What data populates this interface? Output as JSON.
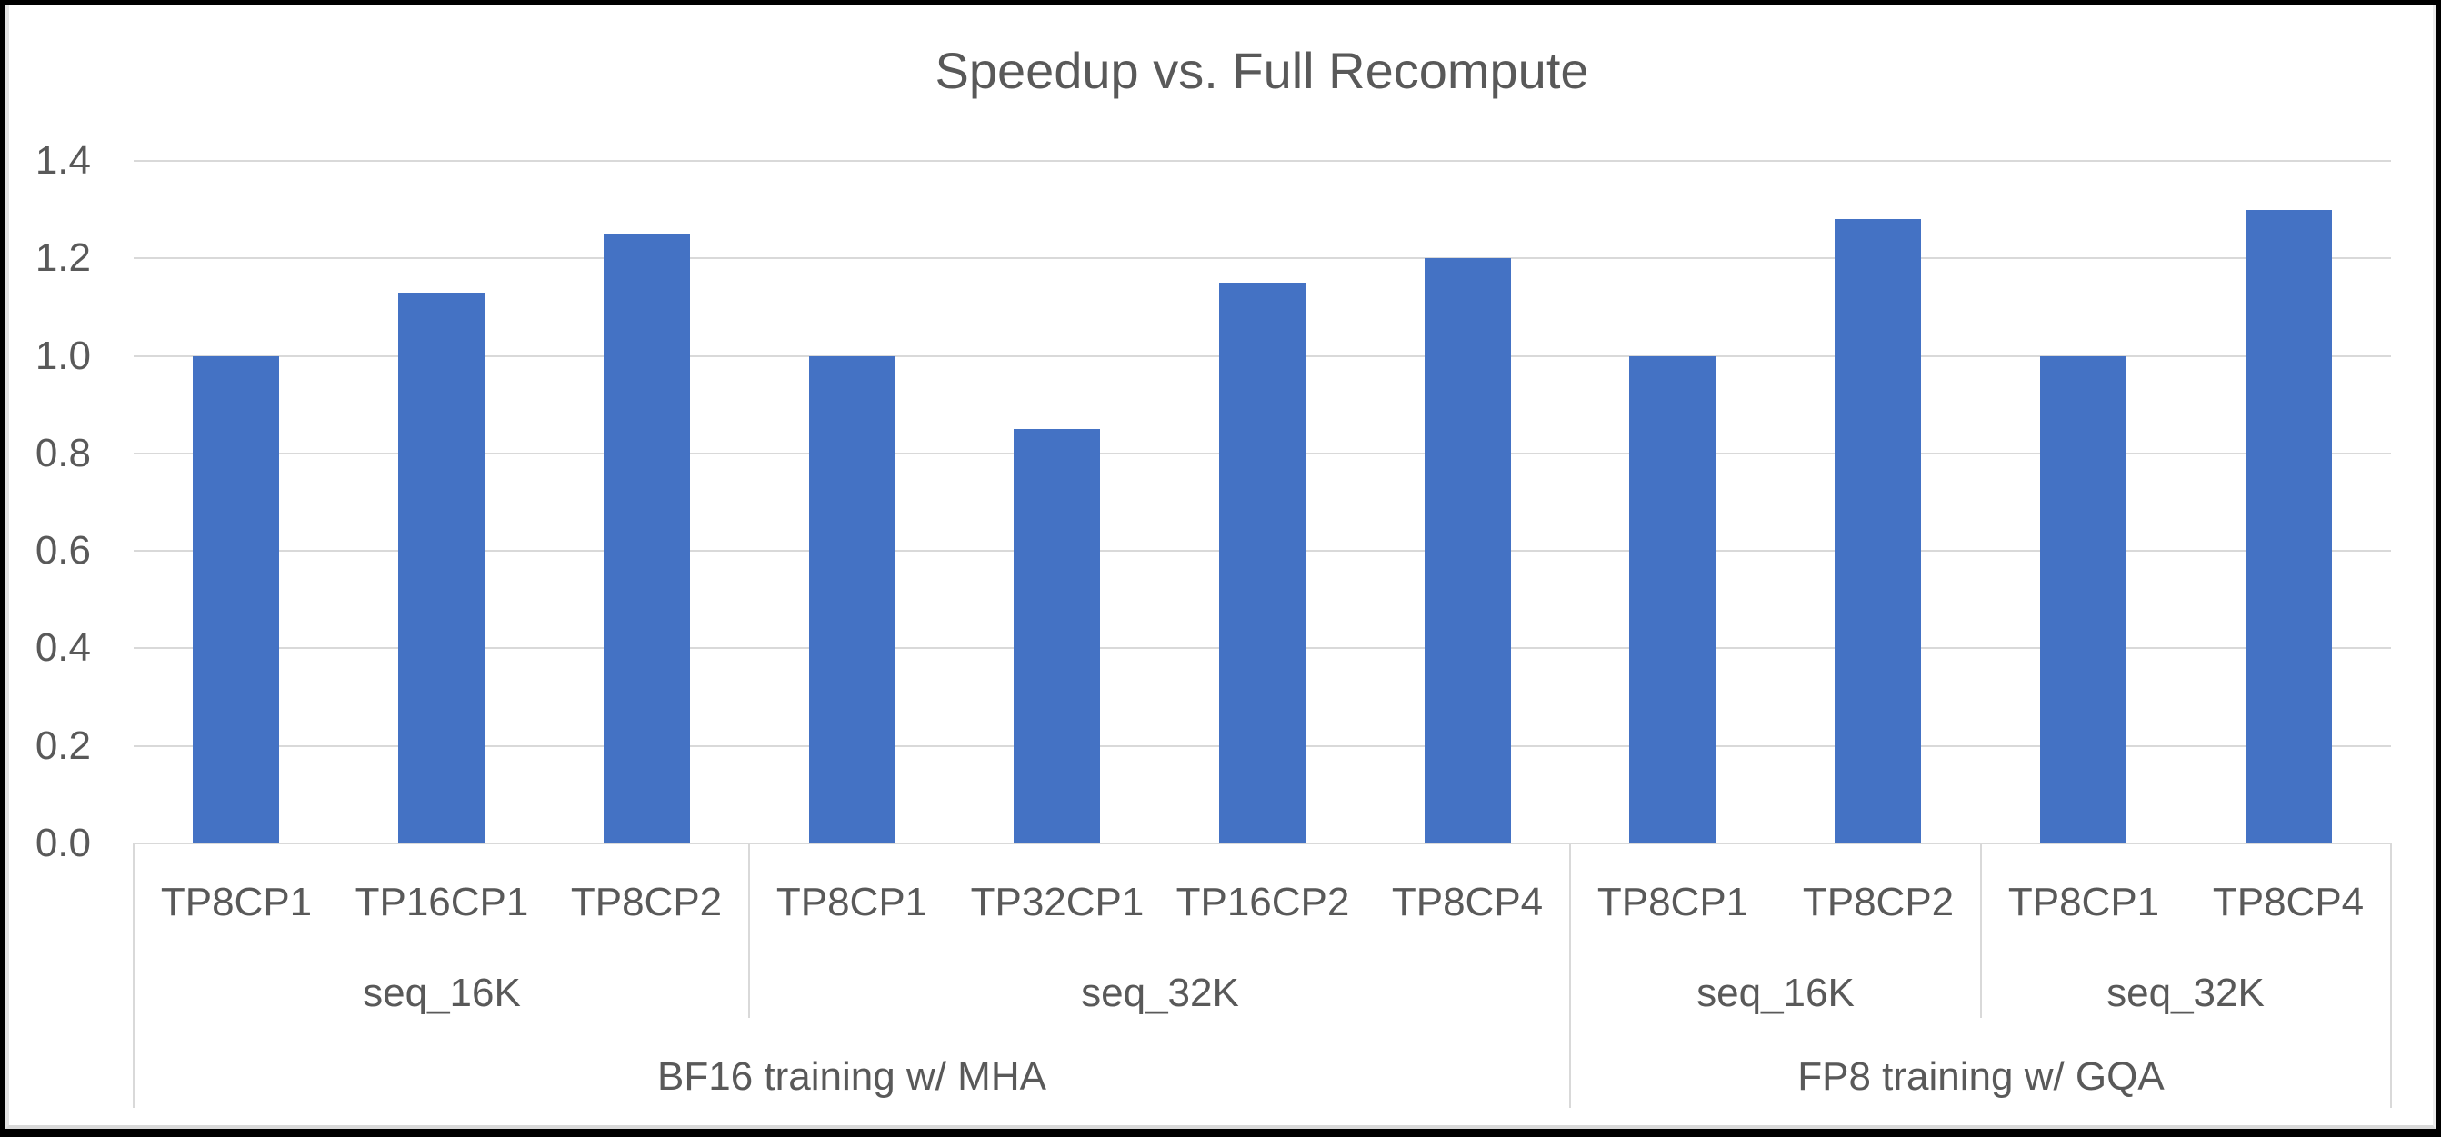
{
  "frame": {
    "border_color": "#000000",
    "inner_edge_color": "#e4e4e4",
    "background": "#ffffff"
  },
  "chart_data": {
    "type": "bar",
    "title": "Speedup vs. Full Recompute",
    "xlabel": "",
    "ylabel": "",
    "ylim": [
      0.0,
      1.4
    ],
    "ytick_labels": [
      "0.0",
      "0.2",
      "0.4",
      "0.6",
      "0.8",
      "1.0",
      "1.2",
      "1.4"
    ],
    "grid": true,
    "legend_position": "none",
    "bar_color": "#4472C4",
    "text_color": "#595959",
    "gridline_color": "#d9d9d9",
    "axis_line_color": "#d9d9d9",
    "separator_color": "#d9d9d9",
    "categories": [
      "TP8CP1",
      "TP16CP1",
      "TP8CP2",
      "TP8CP1",
      "TP32CP1",
      "TP16CP2",
      "TP8CP4",
      "TP8CP1",
      "TP8CP2",
      "TP8CP1",
      "TP8CP4"
    ],
    "values": [
      1.0,
      1.13,
      1.25,
      1.0,
      0.85,
      1.15,
      1.2,
      1.0,
      1.28,
      1.0,
      1.3
    ],
    "category_groups": [
      {
        "label": "seq_16K",
        "span": 3
      },
      {
        "label": "seq_32K",
        "span": 4
      },
      {
        "label": "seq_16K",
        "span": 2
      },
      {
        "label": "seq_32K",
        "span": 2
      }
    ],
    "category_supergroups": [
      {
        "label": "BF16 training w/ MHA",
        "span": 7
      },
      {
        "label": "FP8 training w/ GQA",
        "span": 4
      }
    ]
  }
}
